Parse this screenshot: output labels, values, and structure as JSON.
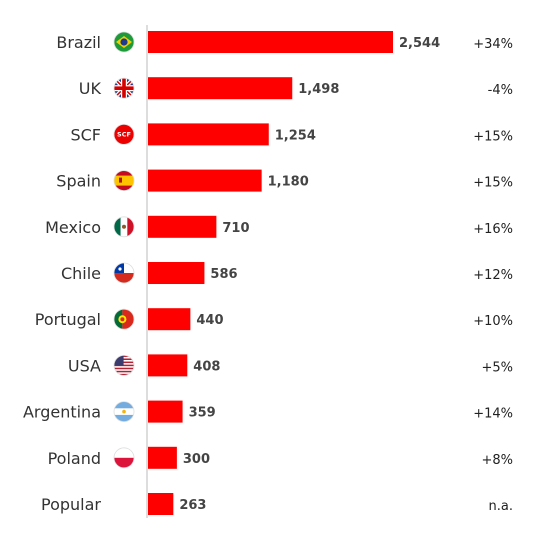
{
  "chart_data": {
    "type": "bar",
    "orientation": "horizontal",
    "categories": [
      "Brazil",
      "UK",
      "SCF",
      "Spain",
      "Mexico",
      "Chile",
      "Portugal",
      "USA",
      "Argentina",
      "Poland",
      "Popular"
    ],
    "values": [
      2544,
      1498,
      1254,
      1180,
      710,
      586,
      440,
      408,
      359,
      300,
      263
    ],
    "value_labels": [
      "2,544",
      "1,498",
      "1,254",
      "1,180",
      "710",
      "586",
      "440",
      "408",
      "359",
      "300",
      "263"
    ],
    "changes": [
      "+34%",
      "-4%",
      "+15%",
      "+15%",
      "+16%",
      "+12%",
      "+10%",
      "+5%",
      "+14%",
      "+8%",
      "n.a."
    ],
    "icons": [
      "brazil-flag-icon",
      "uk-flag-icon",
      "scf-badge-icon",
      "spain-flag-icon",
      "mexico-flag-icon",
      "chile-flag-icon",
      "portugal-flag-icon",
      "usa-flag-icon",
      "argentina-flag-icon",
      "poland-flag-icon",
      ""
    ],
    "icon_labels": {
      "scf": "SCF"
    },
    "bar_color": "#ff0000",
    "axis_color": "#bbbbbb",
    "xlim": [
      0,
      2800
    ],
    "grid": false
  }
}
